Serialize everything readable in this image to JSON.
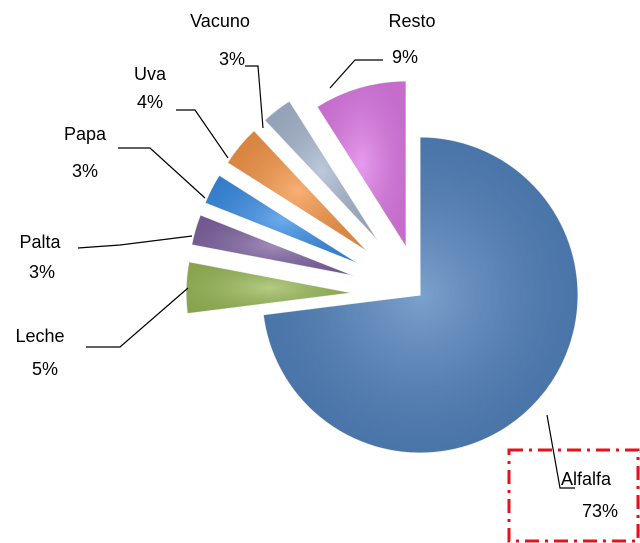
{
  "chart_data": {
    "type": "pie",
    "categories": [
      "Alfalfa",
      "Leche",
      "Palta",
      "Papa",
      "Uva",
      "Vacuno",
      "Resto"
    ],
    "values": [
      73,
      5,
      3,
      3,
      4,
      3,
      9
    ],
    "value_labels": [
      "73%",
      "5%",
      "3%",
      "3%",
      "4%",
      "3%",
      "9%"
    ],
    "colors": [
      "#4f81bd",
      "#9bbb59",
      "#8064a2",
      "#3a8ee6",
      "#f79646",
      "#a8b8d0",
      "#e07ae8"
    ]
  }
}
